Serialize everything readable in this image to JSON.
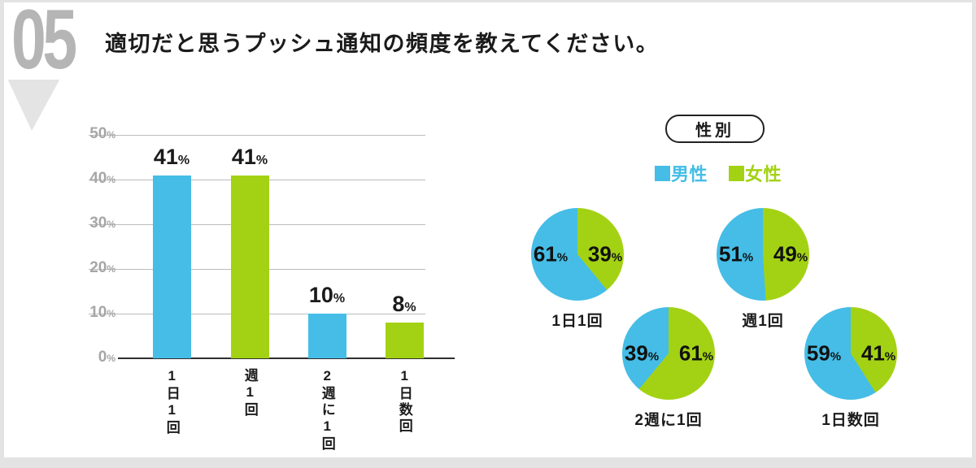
{
  "header": {
    "number": "05",
    "title": "適切だと思うプッシュ通知の頻度を教えてください。"
  },
  "colors": {
    "male_blue": "#45BDE6",
    "female_green": "#A3D214",
    "grid": "#bcbcbc",
    "axis": "#2e2e2e",
    "number_gray": "#b5b5b5"
  },
  "gender": {
    "badge": "性別",
    "legend": [
      {
        "label": "男性",
        "color": "#45BDE6"
      },
      {
        "label": "女性",
        "color": "#A3D214"
      }
    ]
  },
  "chart_data": [
    {
      "type": "bar",
      "title": "適切だと思うプッシュ通知の頻度を教えてください。",
      "categories": [
        "1日1回",
        "週1回",
        "2週に1回",
        "1日数回"
      ],
      "values": [
        41,
        41,
        10,
        8
      ],
      "unit": "%",
      "ylim": [
        0,
        50
      ],
      "yticks": [
        0,
        10,
        20,
        30,
        40,
        50
      ],
      "grid": true,
      "bar_colors": [
        "#45BDE6",
        "#A3D214",
        "#45BDE6",
        "#A3D214"
      ]
    },
    {
      "type": "pie",
      "group": "性別",
      "title": "1日1回",
      "series": [
        {
          "name": "男性",
          "value": 61,
          "color": "#45BDE6"
        },
        {
          "name": "女性",
          "value": 39,
          "color": "#A3D214"
        }
      ]
    },
    {
      "type": "pie",
      "group": "性別",
      "title": "週1回",
      "series": [
        {
          "name": "男性",
          "value": 51,
          "color": "#45BDE6"
        },
        {
          "name": "女性",
          "value": 49,
          "color": "#A3D214"
        }
      ]
    },
    {
      "type": "pie",
      "group": "性別",
      "title": "2週に1回",
      "series": [
        {
          "name": "男性",
          "value": 39,
          "color": "#45BDE6"
        },
        {
          "name": "女性",
          "value": 61,
          "color": "#A3D214"
        }
      ]
    },
    {
      "type": "pie",
      "group": "性別",
      "title": "1日数回",
      "series": [
        {
          "name": "男性",
          "value": 59,
          "color": "#45BDE6"
        },
        {
          "name": "女性",
          "value": 41,
          "color": "#A3D214"
        }
      ]
    }
  ]
}
